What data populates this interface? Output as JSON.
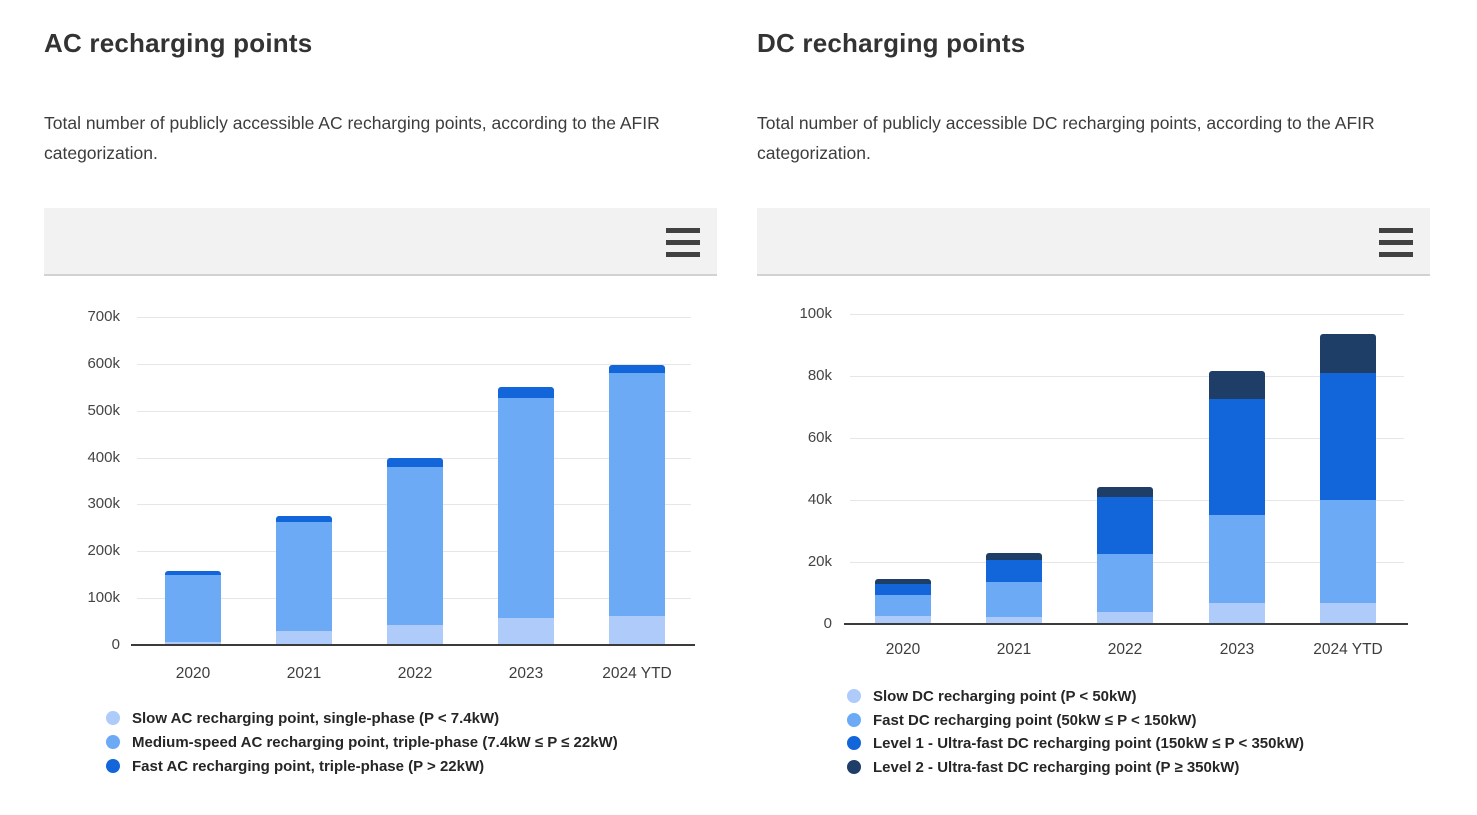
{
  "charts": [
    {
      "title": "AC recharging points",
      "subtitle": "Total number of publicly accessible AC recharging points, according to the AFIR categorization.",
      "toolbar": {
        "menu_icon": "hamburger-menu"
      },
      "chart_data": {
        "type": "bar",
        "stacked": true,
        "title": "AC recharging points",
        "xlabel": "",
        "ylabel": "",
        "categories": [
          "2020",
          "2021",
          "2022",
          "2023",
          "2024 YTD"
        ],
        "y_ticks": [
          "0",
          "100k",
          "200k",
          "300k",
          "400k",
          "500k",
          "600k",
          "700k"
        ],
        "y_max": 700000,
        "ylim": [
          0,
          700000
        ],
        "grid": true,
        "legend_position": "bottom",
        "series": [
          {
            "name": "Slow AC recharging point, single-phase (P < 7.4kW)",
            "color": "#aecbfa",
            "values": [
              7000,
              29000,
              42000,
              58000,
              61000
            ]
          },
          {
            "name": "Medium-speed AC recharging point, triple-phase (7.4kW ≤ P ≤ 22kW)",
            "color": "#6caaf6",
            "values": [
              142000,
              233000,
              337000,
              469000,
              520000
            ]
          },
          {
            "name": "Fast AC recharging point, triple-phase (P > 22kW)",
            "color": "#1266d9",
            "values": [
              8000,
              13000,
              21000,
              23000,
              16000
            ]
          }
        ]
      }
    },
    {
      "title": "DC recharging points",
      "subtitle": "Total number of publicly accessible DC recharging points, according to the AFIR categorization.",
      "toolbar": {
        "menu_icon": "hamburger-menu"
      },
      "chart_data": {
        "type": "bar",
        "stacked": true,
        "title": "DC recharging points",
        "xlabel": "",
        "ylabel": "",
        "categories": [
          "2020",
          "2021",
          "2022",
          "2023",
          "2024 YTD"
        ],
        "y_ticks": [
          "0",
          "20k",
          "40k",
          "60k",
          "80k",
          "100k"
        ],
        "y_max": 100000,
        "ylim": [
          0,
          100000
        ],
        "grid": true,
        "legend_position": "bottom",
        "series": [
          {
            "name": "Slow DC recharging point (P < 50kW)",
            "color": "#aecbfa",
            "values": [
              2500,
              2200,
              4000,
              6700,
              6900
            ]
          },
          {
            "name": "Fast DC recharging point (50kW ≤ P < 150kW)",
            "color": "#6caaf6",
            "values": [
              6800,
              11200,
              18600,
              28500,
              33100
            ]
          },
          {
            "name": "Level 1 - Ultra-fast DC recharging point (150kW ≤ P < 350kW)",
            "color": "#1266d9",
            "values": [
              3700,
              7400,
              18300,
              37300,
              40900
            ]
          },
          {
            "name": "Level 2 - Ultra-fast DC recharging point (P ≥ 350kW)",
            "color": "#1e3e68",
            "values": [
              1500,
              2000,
              3200,
              9100,
              12600
            ]
          }
        ]
      }
    }
  ]
}
